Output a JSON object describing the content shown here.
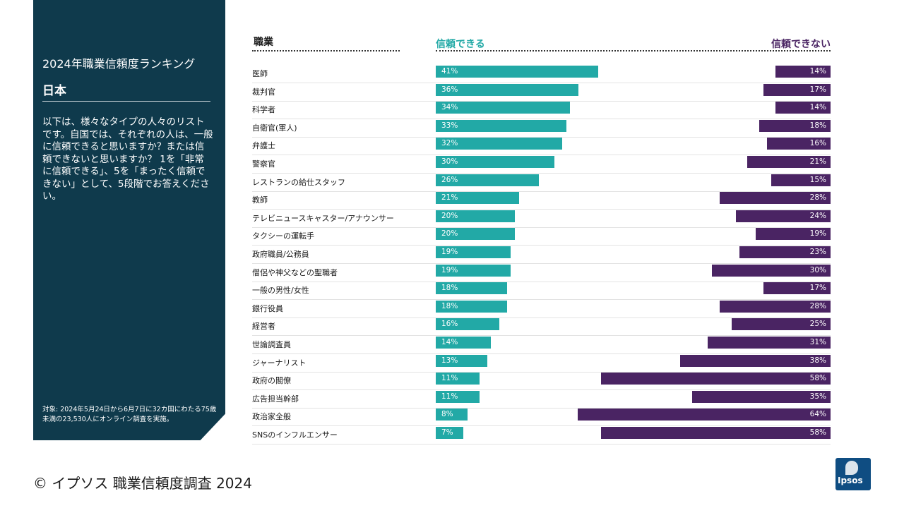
{
  "sidebar": {
    "title": "2024年職業信頼度ランキング",
    "country": "日本",
    "description": "以下は、様々なタイプの人々のリストです。自国では、それぞれの人は、一般に信頼できると思いますか？または信頼できないと思いますか？ 1を「非常に信頼できる」、5を「まったく信頼できない」として、5段階でお答えください。",
    "note": "対象: 2024年5月24日から6月7日に32カ国にわたる75歳未満の23,530人にオンライン調査を実施。"
  },
  "footer": {
    "copyright": "© イプソス 職業信頼度調査 2024",
    "logo_text": "Ipsos"
  },
  "colors": {
    "trust": "#22a9a6",
    "distrust": "#4a2463",
    "panel": "#0f3a4c"
  },
  "chart_data": {
    "type": "bar",
    "title": "2024年職業信頼度ランキング",
    "category_header": "職業",
    "scale_max": 100,
    "categories": [
      "医師",
      "裁判官",
      "科学者",
      "自衛官(軍人)",
      "弁護士",
      "警察官",
      "レストランの給仕スタッフ",
      "教師",
      "テレビニュースキャスター/アナウンサー",
      "タクシーの運転手",
      "政府職員/公務員",
      "僧侶や神父などの聖職者",
      "一般の男性/女性",
      "銀行役員",
      "経営者",
      "世論調査員",
      "ジャーナリスト",
      "政府の閣僚",
      "広告担当幹部",
      "政治家全般",
      "SNSのインフルエンサー"
    ],
    "series": [
      {
        "name": "信頼できる",
        "values": [
          41,
          36,
          34,
          33,
          32,
          30,
          26,
          21,
          20,
          20,
          19,
          19,
          18,
          18,
          16,
          14,
          13,
          11,
          11,
          8,
          7
        ]
      },
      {
        "name": "信頼できない",
        "values": [
          14,
          17,
          14,
          18,
          16,
          21,
          15,
          28,
          24,
          19,
          23,
          30,
          17,
          28,
          25,
          31,
          38,
          58,
          35,
          64,
          58
        ]
      }
    ]
  }
}
